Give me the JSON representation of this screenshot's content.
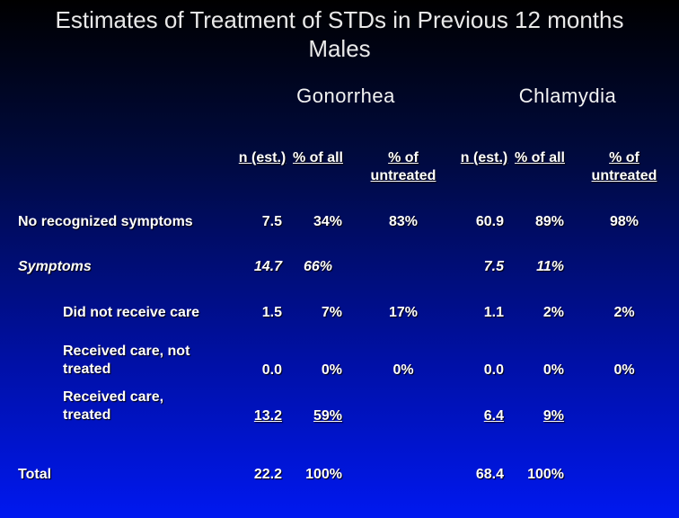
{
  "title": {
    "line1": "Estimates of Treatment of STDs in Previous 12 months",
    "line2": "Males"
  },
  "groups": {
    "gonorrhea": "Gonorrhea",
    "chlamydia": "Chlamydia"
  },
  "columns": {
    "gon_n": "n (est.)",
    "gon_pct_all": "% of all",
    "gon_pct_untreated": "% of untreated",
    "chl_n": "n (est.)",
    "chl_pct_all": "% of all",
    "chl_pct_untreated": "% of untreated"
  },
  "rows": {
    "no_symptoms": {
      "label": "No recognized symptoms",
      "gon_n": "7.5",
      "gon_all": "34%",
      "gon_untreated": "83%",
      "chl_n": "60.9",
      "chl_all": "89%",
      "chl_untreated": "98%"
    },
    "symptoms": {
      "label": "Symptoms",
      "gon_n": "14.7",
      "gon_all": "66%",
      "gon_untreated": "",
      "chl_n": "7.5",
      "chl_all": "11%",
      "chl_untreated": ""
    },
    "no_care": {
      "label": "Did not receive care",
      "gon_n": "1.5",
      "gon_all": "7%",
      "gon_untreated": "17%",
      "chl_n": "1.1",
      "chl_all": "2%",
      "chl_untreated": "2%"
    },
    "care_not_treated": {
      "label_line1": "Received care, not",
      "label_line2": "treated",
      "gon_n": "0.0",
      "gon_all": "0%",
      "gon_untreated": "0%",
      "chl_n": "0.0",
      "chl_all": "0%",
      "chl_untreated": "0%"
    },
    "care_treated": {
      "label_line1": "Received care,",
      "label_line2": "treated",
      "gon_n": "13.2",
      "gon_all": "59%",
      "gon_untreated": "",
      "chl_n": "6.4",
      "chl_all": "9%",
      "chl_untreated": ""
    },
    "total": {
      "label": "Total",
      "gon_n": "22.2",
      "gon_all": "100%",
      "gon_untreated": "",
      "chl_n": "68.4",
      "chl_all": "100%",
      "chl_untreated": ""
    }
  },
  "colors": {
    "background_top": "#000000",
    "background_bottom": "#0018f0",
    "text": "#ffffff"
  }
}
